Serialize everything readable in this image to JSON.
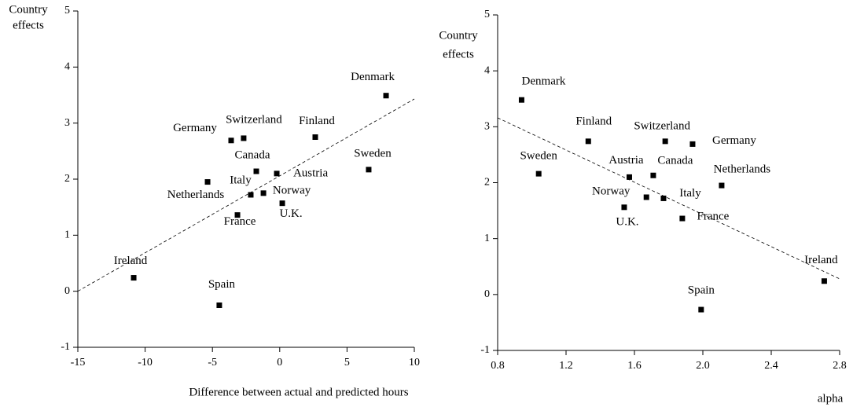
{
  "chart_data": [
    {
      "type": "scatter",
      "ylabel": [
        "Country",
        "effects"
      ],
      "xlabel": "Difference between actual and predicted hours",
      "labels": [
        "Denmark",
        "Finland",
        "Switzerland",
        "Germany",
        "Canada",
        "Austria",
        "Sweden",
        "Netherlands",
        "Italy",
        "Norway",
        "U.K.",
        "France",
        "Ireland",
        "Spain"
      ],
      "x": [
        7.9,
        2.64,
        -2.68,
        -3.61,
        -1.74,
        -0.22,
        6.61,
        -5.36,
        -2.15,
        -1.21,
        0.19,
        -3.14,
        -10.85,
        -4.49
      ],
      "values": [
        3.49,
        2.75,
        2.73,
        2.69,
        2.14,
        2.1,
        2.17,
        1.95,
        1.72,
        1.75,
        1.57,
        1.36,
        0.24,
        -0.25
      ],
      "color": "#000000",
      "fit_line": {
        "x": [
          -15,
          10
        ],
        "y": [
          0,
          3.43
        ]
      },
      "xlim": [
        -15,
        10
      ],
      "xticks": [
        -15,
        -10,
        -5,
        0,
        5,
        10
      ],
      "ylim": [
        -1,
        5
      ],
      "yticks": [
        -1,
        0,
        1,
        2,
        3,
        4,
        5
      ]
    },
    {
      "type": "scatter",
      "ylabel": [
        "Country",
        "effects"
      ],
      "xlabel": "alpha",
      "labels": [
        "Denmark",
        "Finland",
        "Switzerland",
        "Germany",
        "Sweden",
        "Austria",
        "Canada",
        "Netherlands",
        "Norway",
        "Italy",
        "U.K.",
        "France",
        "Ireland",
        "Spain"
      ],
      "x": [
        0.94,
        1.33,
        1.78,
        1.94,
        1.04,
        1.57,
        1.71,
        2.11,
        1.67,
        1.77,
        1.54,
        1.88,
        2.71,
        1.99
      ],
      "values": [
        3.48,
        2.74,
        2.74,
        2.69,
        2.16,
        2.1,
        2.13,
        1.95,
        1.74,
        1.72,
        1.56,
        1.36,
        0.24,
        -0.27
      ],
      "color": "#000000",
      "fit_line": {
        "x": [
          0.8,
          2.8
        ],
        "y": [
          3.16,
          0.28
        ]
      },
      "xlim": [
        0.8,
        2.8
      ],
      "xticks": [
        0.8,
        1.2,
        1.6,
        {
          "value": 2,
          "label": "2.0"
        },
        2.4,
        2.8
      ],
      "ylim": [
        -1,
        5
      ],
      "yticks": [
        -1,
        0,
        1,
        2,
        3,
        4,
        5
      ]
    }
  ]
}
